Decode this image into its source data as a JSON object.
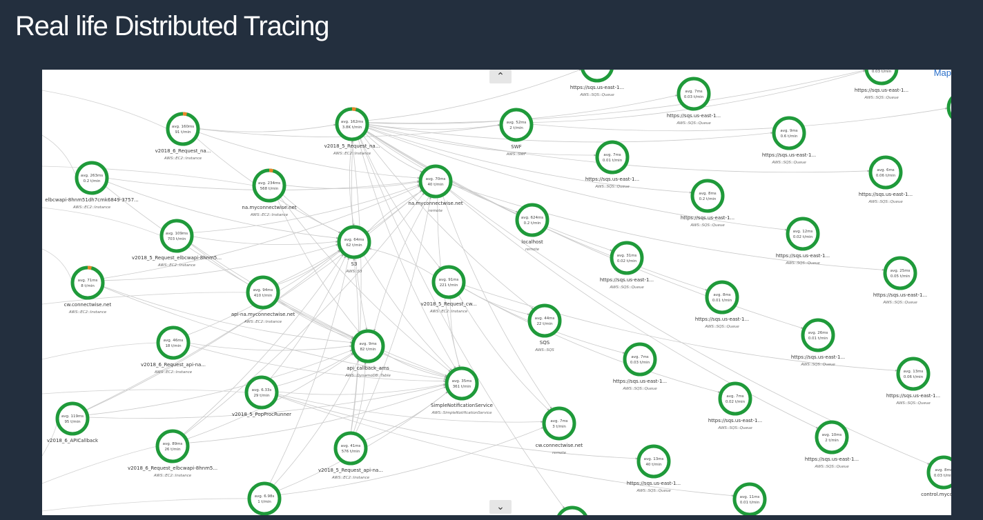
{
  "title": "Real life Distributed Tracing",
  "map_link": "Map",
  "nodes": [
    {
      "id": "n1",
      "avg": "avg. 160ms",
      "rate": "91 t/min",
      "name": "v2018_6_Request_na...",
      "type": "AWS::EC2::Instance"
    },
    {
      "id": "n2",
      "avg": "avg. 162ms",
      "rate": "3.8K t/min",
      "name": "v2018_5_Request_na...",
      "type": "AWS::EC2::Instance"
    },
    {
      "id": "n3",
      "avg": "avg. 52ms",
      "rate": "2 t/min",
      "name": "SWF",
      "type": "AWS::SWF"
    },
    {
      "id": "n4",
      "avg": "avg. 263ms",
      "rate": "0.2 t/min",
      "name": "elbcwapi-8hnm51dh7cmk6849-3757...",
      "type": "AWS::EC2::Instance"
    },
    {
      "id": "n5",
      "avg": "avg. 234ms",
      "rate": "568 t/min",
      "name": "na.myconnectwise.net",
      "type": "AWS::EC2::Instance"
    },
    {
      "id": "n6",
      "avg": "avg. 70ms",
      "rate": "40 t/min",
      "name": "na.myconnectwise.net",
      "type": "remote"
    },
    {
      "id": "n7",
      "avg": "avg. 624ms",
      "rate": "0.2 t/min",
      "name": "localhost",
      "type": "remote"
    },
    {
      "id": "n8",
      "avg": "avg. 109ms",
      "rate": "703 t/min",
      "name": "v2018_5_Request_elbcwapi-8hnm5...",
      "type": "AWS::EC2::Instance"
    },
    {
      "id": "n9",
      "avg": "avg. 64ms",
      "rate": "62 t/min",
      "name": "S3",
      "type": "AWS::S3"
    },
    {
      "id": "n10",
      "avg": "avg. 71ms",
      "rate": "8 t/min",
      "name": "cw.connectwise.net",
      "type": "AWS::EC2::Instance"
    },
    {
      "id": "n11",
      "avg": "avg. 94ms",
      "rate": "410 t/min",
      "name": "api-na.myconnectwise.net",
      "type": "AWS::EC2::Instance"
    },
    {
      "id": "n12",
      "avg": "avg. 91ms",
      "rate": "221 t/min",
      "name": "v2018_5_Request_cw...",
      "type": "AWS::EC2::Instance"
    },
    {
      "id": "n13",
      "avg": "avg. 44ms",
      "rate": "22 t/min",
      "name": "SQS",
      "type": "AWS::SQS"
    },
    {
      "id": "n14",
      "avg": "avg. 46ms",
      "rate": "18 t/min",
      "name": "v2018_6_Request_api-na...",
      "type": "AWS::EC2::Instance"
    },
    {
      "id": "n15",
      "avg": "avg. 9ms",
      "rate": "82 t/min",
      "name": "api_callback_arns",
      "type": "AWS::DynamoDB::Table"
    },
    {
      "id": "n16",
      "avg": "avg. 6.33s",
      "rate": "29 t/min",
      "name": "v2018_5_PopProcRunner",
      "type": ""
    },
    {
      "id": "n17",
      "avg": "avg. 35ms",
      "rate": "361 t/min",
      "name": "SimpleNotificationService",
      "type": "AWS::SimpleNotificationService"
    },
    {
      "id": "n18",
      "avg": "avg. 119ms",
      "rate": "95 t/min",
      "name": "v2018_6_APICallback",
      "type": ""
    },
    {
      "id": "n19",
      "avg": "avg. 89ms",
      "rate": "26 t/min",
      "name": "v2018_6_Request_elbcwapi-8hnm5...",
      "type": "AWS::EC2::Instance"
    },
    {
      "id": "n20",
      "avg": "avg. 41ms",
      "rate": "576 t/min",
      "name": "v2018_5_Request_api-na...",
      "type": "AWS::EC2::Instance"
    },
    {
      "id": "n21",
      "avg": "avg. 7ms",
      "rate": "3 t/min",
      "name": "cw.connectwise.net",
      "type": "remote"
    },
    {
      "id": "n22",
      "avg": "avg. 6.98s",
      "rate": "1 t/min",
      "name": "",
      "type": ""
    },
    {
      "id": "q0",
      "avg": "",
      "rate": "",
      "name": "https://sqs.us-east-1...",
      "type": "AWS::SQS::Queue"
    },
    {
      "id": "q1",
      "avg": "",
      "rate": "0.03 t/min",
      "name": "https://sqs.us-east-1...",
      "type": "AWS::SQS::Queue"
    },
    {
      "id": "q2",
      "avg": "avg. 7ms",
      "rate": "0.03 t/min",
      "name": "https://sqs.us-east-1...",
      "type": "AWS::SQS::Queue"
    },
    {
      "id": "q3",
      "avg": "avg. 9ms",
      "rate": "0.6 t/min",
      "name": "https://sqs.us-east-1...",
      "type": "AWS::SQS::Queue"
    },
    {
      "id": "q4",
      "avg": "avg. 7ms",
      "rate": "0.01 t/min",
      "name": "https://sqs.us-east-1...",
      "type": "AWS::SQS::Queue"
    },
    {
      "id": "q5",
      "avg": "avg. 6ms",
      "rate": "0.06 t/min",
      "name": "https://sqs.us-east-1...",
      "type": "AWS::SQS::Queue"
    },
    {
      "id": "q6",
      "avg": "avg. 8ms",
      "rate": "0.2 t/min",
      "name": "https://sqs.us-east-1...",
      "type": "AWS::SQS::Queue"
    },
    {
      "id": "q7",
      "avg": "avg. 12ms",
      "rate": "0.02 t/min",
      "name": "https://sqs.us-east-1...",
      "type": "AWS::SQS::Queue"
    },
    {
      "id": "q8",
      "avg": "avg. 31ms",
      "rate": "0.02 t/min",
      "name": "https://sqs.us-east-1...",
      "type": "AWS::SQS::Queue"
    },
    {
      "id": "q9",
      "avg": "avg. 25ms",
      "rate": "0.05 t/min",
      "name": "https://sqs.us-east-1...",
      "type": "AWS::SQS::Queue"
    },
    {
      "id": "q10",
      "avg": "avg. 8ms",
      "rate": "0.01 t/min",
      "name": "https://sqs.us-east-1...",
      "type": "AWS::SQS::Queue"
    },
    {
      "id": "q11",
      "avg": "avg. 26ms",
      "rate": "0.01 t/min",
      "name": "https://sqs.us-east-1...",
      "type": "AWS::SQS::Queue"
    },
    {
      "id": "q12",
      "avg": "avg. 7ms",
      "rate": "0.03 t/min",
      "name": "https://sqs.us-east-1...",
      "type": "AWS::SQS::Queue"
    },
    {
      "id": "q13",
      "avg": "avg. 13ms",
      "rate": "0.06 t/min",
      "name": "https://sqs.us-east-1...",
      "type": "AWS::SQS::Queue"
    },
    {
      "id": "q14",
      "avg": "avg. 7ms",
      "rate": "0.02 t/min",
      "name": "https://sqs.us-east-1...",
      "type": "AWS::SQS::Queue"
    },
    {
      "id": "q15",
      "avg": "avg. 10ms",
      "rate": "2 t/min",
      "name": "https://sqs.us-east-1...",
      "type": "AWS::SQS::Queue"
    },
    {
      "id": "q16",
      "avg": "avg. 13ms",
      "rate": "40 t/min",
      "name": "https://sqs.us-east-1...",
      "type": "AWS::SQS::Queue"
    },
    {
      "id": "q17",
      "avg": "avg. 11ms",
      "rate": "0.01 t/min",
      "name": "",
      "type": ""
    },
    {
      "id": "q18",
      "avg": "avg. 8ms",
      "rate": "0.03 t/min",
      "name": "control.myconne...",
      "type": ""
    },
    {
      "id": "q19",
      "avg": "",
      "rate": "",
      "name": "",
      "type": ""
    },
    {
      "id": "q20",
      "avg": "",
      "rate": "",
      "name": "",
      "type": ""
    }
  ],
  "edges": [
    [
      "n2",
      "n3"
    ],
    [
      "n2",
      "n6"
    ],
    [
      "n2",
      "n7"
    ],
    [
      "n2",
      "n9"
    ],
    [
      "n2",
      "n12"
    ],
    [
      "n2",
      "q4"
    ],
    [
      "n2",
      "q6"
    ],
    [
      "n2",
      "q7"
    ],
    [
      "n2",
      "q8"
    ],
    [
      "n2",
      "q10"
    ],
    [
      "n2",
      "q11"
    ],
    [
      "n2",
      "q2"
    ],
    [
      "n2",
      "q3"
    ],
    [
      "n2",
      "q5"
    ],
    [
      "n2",
      "n13"
    ],
    [
      "n2",
      "n15"
    ],
    [
      "n2",
      "n17"
    ],
    [
      "n2",
      "q0"
    ],
    [
      "n2",
      "q1"
    ],
    [
      "n1",
      "n6"
    ],
    [
      "n1",
      "n9"
    ],
    [
      "n1",
      "n3"
    ],
    [
      "n1",
      "n2"
    ],
    [
      "n4",
      "n9"
    ],
    [
      "n4",
      "n6"
    ],
    [
      "n4",
      "n15"
    ],
    [
      "n5",
      "n9"
    ],
    [
      "n5",
      "n15"
    ],
    [
      "n5",
      "n17"
    ],
    [
      "n5",
      "n6"
    ],
    [
      "n8",
      "n9"
    ],
    [
      "n8",
      "n6"
    ],
    [
      "n8",
      "n15"
    ],
    [
      "n8",
      "n17"
    ],
    [
      "n10",
      "n9"
    ],
    [
      "n10",
      "n15"
    ],
    [
      "n10",
      "n17"
    ],
    [
      "n10",
      "n6"
    ],
    [
      "n11",
      "n9"
    ],
    [
      "n11",
      "n15"
    ],
    [
      "n11",
      "n17"
    ],
    [
      "n11",
      "n6"
    ],
    [
      "n12",
      "n9"
    ],
    [
      "n12",
      "n13"
    ],
    [
      "n12",
      "n17"
    ],
    [
      "n12",
      "n21"
    ],
    [
      "n12",
      "q12"
    ],
    [
      "n12",
      "q13"
    ],
    [
      "n12",
      "q14"
    ],
    [
      "n14",
      "n9"
    ],
    [
      "n14",
      "n15"
    ],
    [
      "n14",
      "n17"
    ],
    [
      "n16",
      "n9"
    ],
    [
      "n16",
      "n15"
    ],
    [
      "n16",
      "n17"
    ],
    [
      "n16",
      "n21"
    ],
    [
      "n16",
      "q16"
    ],
    [
      "n16",
      "q17"
    ],
    [
      "n18",
      "n9"
    ],
    [
      "n18",
      "n15"
    ],
    [
      "n18",
      "n17"
    ],
    [
      "n18",
      "n6"
    ],
    [
      "n19",
      "n9"
    ],
    [
      "n19",
      "n15"
    ],
    [
      "n19",
      "n17"
    ],
    [
      "n19",
      "n6"
    ],
    [
      "n20",
      "n9"
    ],
    [
      "n20",
      "n15"
    ],
    [
      "n20",
      "n17"
    ],
    [
      "n20",
      "n6"
    ],
    [
      "n20",
      "n2"
    ],
    [
      "n22",
      "n9"
    ],
    [
      "n22",
      "n15"
    ],
    [
      "n22",
      "n17"
    ],
    [
      "n22",
      "n21"
    ],
    [
      "n6",
      "n9"
    ],
    [
      "n6",
      "n15"
    ],
    [
      "n6",
      "n17"
    ],
    [
      "n6",
      "n21"
    ],
    [
      "n6",
      "q15"
    ],
    [
      "n6",
      "q9"
    ],
    [
      "n6",
      "q18"
    ],
    [
      "n3",
      "q1"
    ],
    [
      "n3",
      "q20"
    ],
    [
      "n2",
      "q19"
    ],
    [
      "n9",
      "n17"
    ],
    [
      "n15",
      "n17"
    ]
  ]
}
